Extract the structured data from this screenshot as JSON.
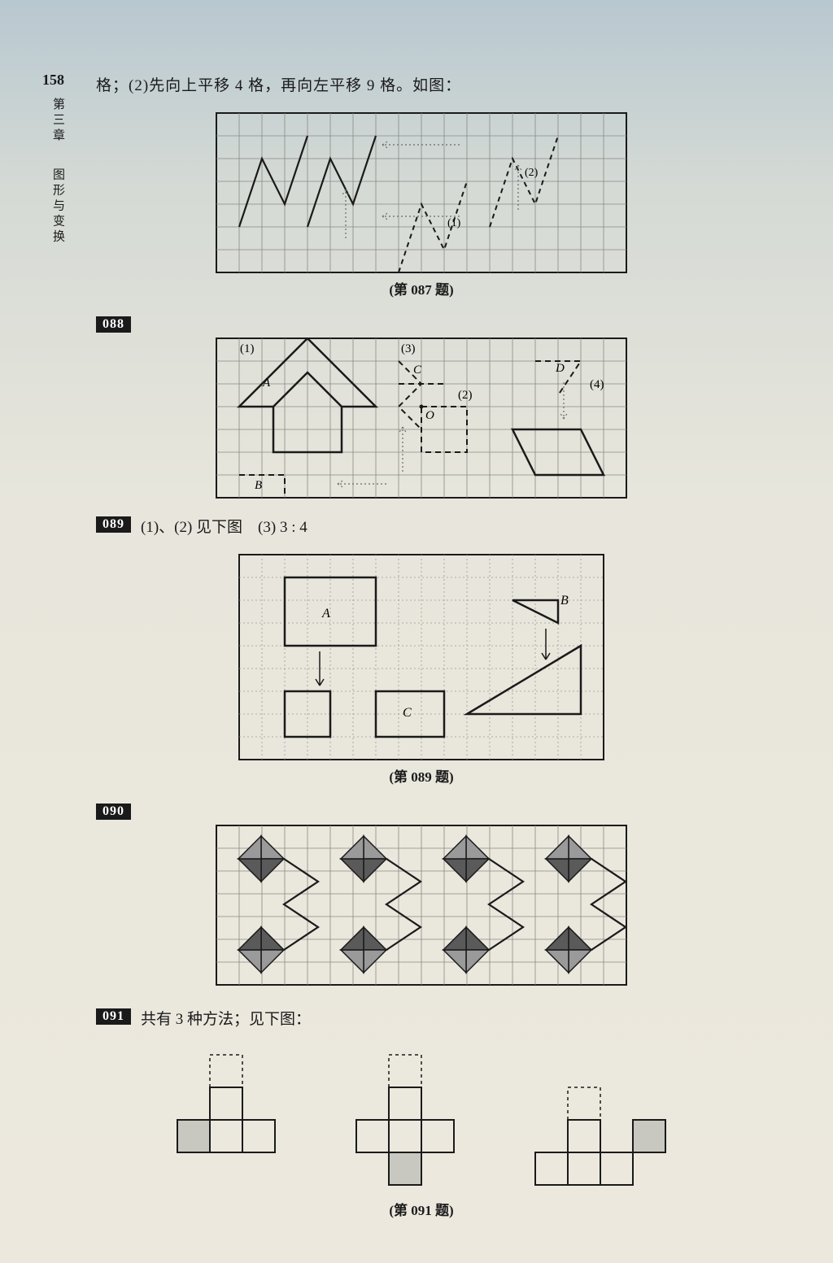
{
  "page_number": "158",
  "side_label_top": "第三章",
  "side_label_bottom": "图形与变换",
  "colors": {
    "ink": "#1a1a1a",
    "grid": "#8a8a82",
    "grid_dotted": "#9a9a92",
    "fill_dark": "#5a5a5a",
    "fill_mid": "#9a9a9a",
    "fill_light": "#c8c8c0",
    "badge_bg": "#1a1a1a",
    "badge_fg": "#ffffff"
  },
  "q087": {
    "intro": "格；(2)先向上平移 4 格，再向左平移 9 格。如图：",
    "caption": "(第 087 题)",
    "grid": {
      "cols": 18,
      "rows": 7,
      "cell": 28
    },
    "label1": "(1)",
    "label2": "(2)",
    "shapes": {
      "solidPoly1": [
        [
          1,
          5
        ],
        [
          2,
          2
        ],
        [
          3,
          4
        ],
        [
          4,
          1
        ]
      ],
      "solidPoly2": [
        [
          4,
          5
        ],
        [
          5,
          2
        ],
        [
          6,
          4
        ],
        [
          7,
          1
        ]
      ],
      "dashPoly1": [
        [
          8,
          7
        ],
        [
          9,
          4
        ],
        [
          10,
          6
        ],
        [
          11,
          3
        ]
      ],
      "dashPoly2": [
        [
          12,
          5
        ],
        [
          13,
          2
        ],
        [
          14,
          4
        ],
        [
          15,
          1
        ]
      ]
    }
  },
  "q088": {
    "badge": "088",
    "grid": {
      "cols": 18,
      "rows": 7,
      "cell": 28
    },
    "labels": {
      "n1": "(1)",
      "n2": "(2)",
      "n3": "(3)",
      "n4": "(4)",
      "A": "A",
      "B": "B",
      "C": "C",
      "D": "D",
      "O": "O"
    }
  },
  "q089": {
    "badge": "089",
    "text": "(1)、(2) 见下图　(3) 3 : 4",
    "caption": "(第 089 题)",
    "grid": {
      "cols": 16,
      "rows": 9,
      "cell": 28
    },
    "labels": {
      "A": "A",
      "B": "B",
      "C": "C"
    }
  },
  "q090": {
    "badge": "090",
    "grid": {
      "cols": 18,
      "rows": 7,
      "cell": 28
    }
  },
  "q091": {
    "badge": "091",
    "text": "共有 3 种方法；见下图：",
    "caption": "(第 091 题)",
    "cell": 40
  }
}
